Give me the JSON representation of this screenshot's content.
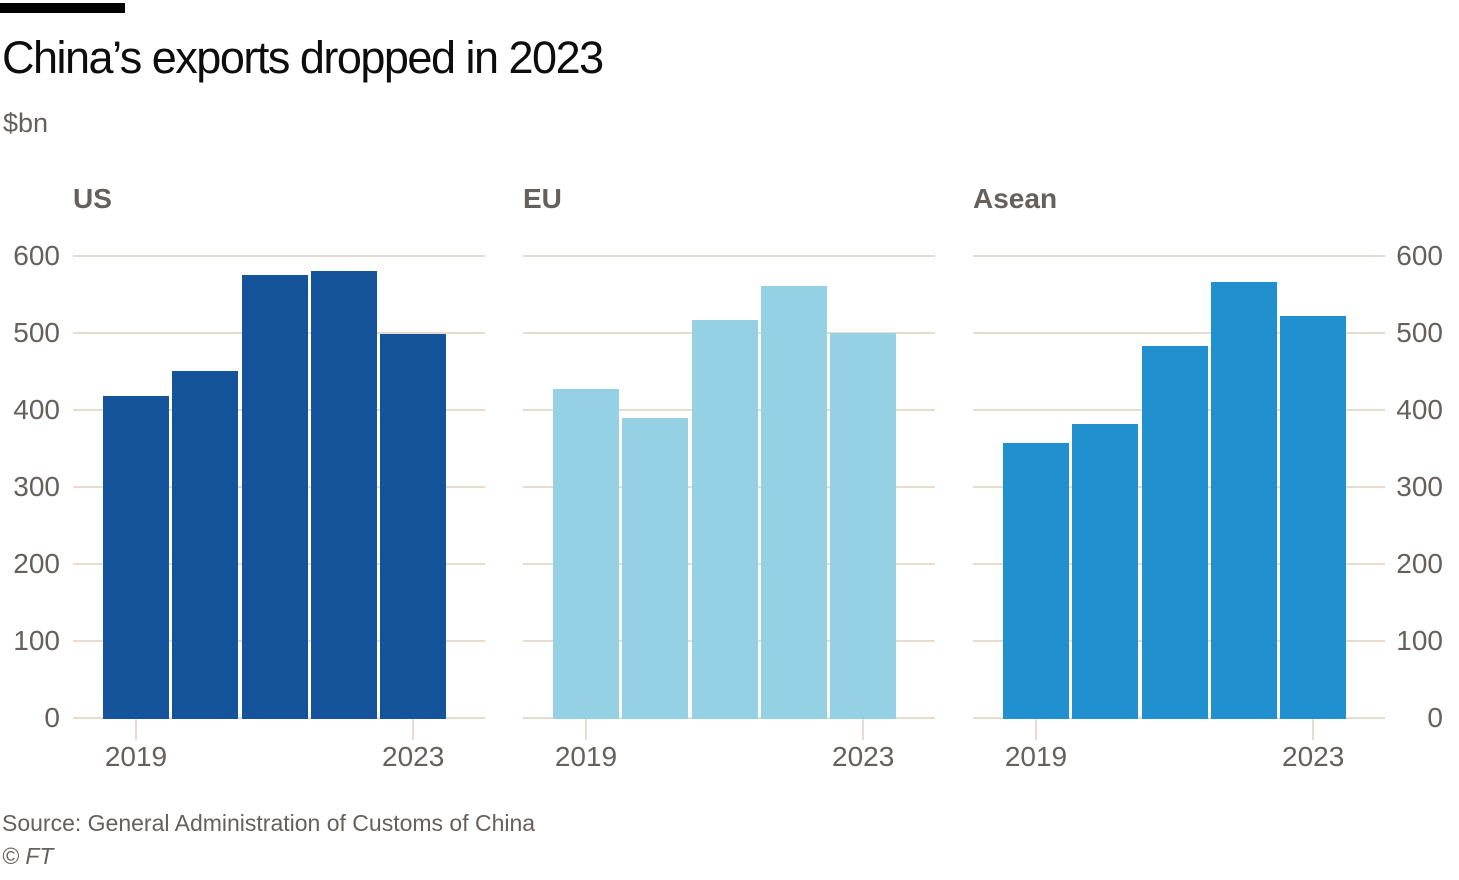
{
  "header": {
    "title": "China’s exports dropped in 2023",
    "unit_label": "$bn"
  },
  "chart_data": {
    "type": "bar",
    "title": "China’s exports dropped in 2023",
    "ylabel": "$bn",
    "categories": [
      "2019",
      "2020",
      "2021",
      "2022",
      "2023"
    ],
    "x_tick_labels": [
      "2019",
      "2023"
    ],
    "y_ticks": [
      600,
      500,
      400,
      300,
      200,
      100,
      0
    ],
    "ylim": [
      0,
      600
    ],
    "grid": true,
    "legend_position": "none",
    "panels": [
      {
        "name": "US",
        "color": "#15549A",
        "values": [
          419,
          452,
          577,
          582,
          500
        ]
      },
      {
        "name": "EU",
        "color": "#95D1E4",
        "values": [
          429,
          391,
          518,
          562,
          501
        ]
      },
      {
        "name": "Asean",
        "color": "#2190CE",
        "values": [
          358,
          383,
          485,
          567,
          524
        ]
      }
    ]
  },
  "footer": {
    "source": "Source: General Administration of Customs of China",
    "copyright": "© FT"
  },
  "colors": {
    "accent_rule": "#000000",
    "gridline": "#E6DCD2",
    "axis_text": "#66605C",
    "title_text": "#0d0d0d",
    "background": "#FFFFFF"
  }
}
